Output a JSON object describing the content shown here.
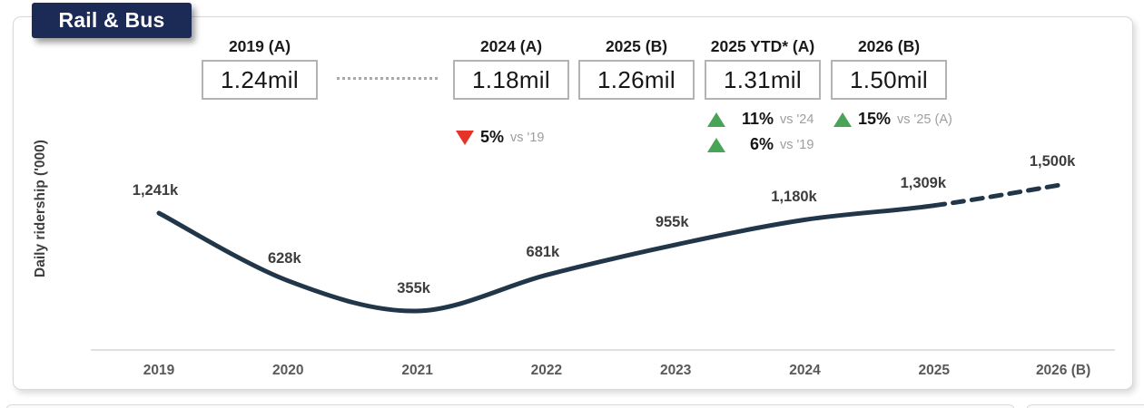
{
  "badge": {
    "label": "Rail & Bus"
  },
  "colors": {
    "badge_navy": "#1c2a56",
    "line_navy": "#213649",
    "up_green": "#4aa457",
    "down_red": "#e6332a",
    "muted_gray": "#9e9e9e"
  },
  "summary_cards": [
    {
      "label": "2019 (A)",
      "value": "1.24mil",
      "indicators": []
    },
    {
      "label": "2024 (A)",
      "value": "1.18mil",
      "indicators": [
        {
          "direction": "down",
          "pct": "5%",
          "vs": "vs '19"
        }
      ]
    },
    {
      "label": "2025 (B)",
      "value": "1.26mil",
      "indicators": []
    },
    {
      "label": "2025 YTD* (A)",
      "value": "1.31mil",
      "indicators": [
        {
          "direction": "up",
          "pct": "11%",
          "vs": "vs '24"
        },
        {
          "direction": "up",
          "pct": "6%",
          "vs": "vs '19"
        }
      ]
    },
    {
      "label": "2026 (B)",
      "value": "1.50mil",
      "indicators": [
        {
          "direction": "up",
          "pct": "15%",
          "vs": "vs '25 (A)"
        }
      ]
    }
  ],
  "chart_data": {
    "type": "line",
    "title": "Rail & Bus",
    "ylabel": "Daily ridership ('000)",
    "xlabel": "",
    "categories": [
      "2019",
      "2020",
      "2021",
      "2022",
      "2023",
      "2024",
      "2025",
      "2026 (B)"
    ],
    "series": [
      {
        "name": "Daily ridership ('000)",
        "values": [
          1241,
          628,
          355,
          681,
          955,
          1180,
          1309,
          1500
        ]
      }
    ],
    "point_labels": [
      "1,241k",
      "628k",
      "355k",
      "681k",
      "955k",
      "1,180k",
      "1,309k",
      "1,500k"
    ],
    "dashed_from_index": 6,
    "line_color": "#213649",
    "grid": false,
    "legend": false,
    "ylim_note": "values in thousands of daily riders"
  }
}
